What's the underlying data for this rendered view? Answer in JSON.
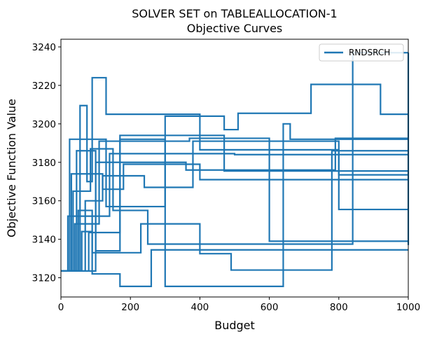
{
  "chart_data": {
    "type": "line",
    "title": "SOLVER SET on TABLEALLOCATION-1",
    "subtitle": "Objective Curves",
    "xlabel": "Budget",
    "ylabel": "Objective Function Value",
    "xlim": [
      0,
      1000
    ],
    "ylim": [
      3110,
      3244
    ],
    "xticks": [
      0,
      200,
      400,
      600,
      800,
      1000
    ],
    "yticks": [
      3120,
      3140,
      3160,
      3180,
      3200,
      3220,
      3240
    ],
    "grid": false,
    "legend_position": "top-right",
    "line_color": "#1f77b4",
    "series": [
      {
        "name": "RNDSRCH",
        "x": [
          0,
          25,
          25,
          130,
          130,
          300,
          300,
          470,
          470,
          510,
          510,
          720,
          720,
          920,
          920,
          1000
        ],
        "y": [
          3123.5,
          3123.5,
          3192,
          3192,
          3157,
          3157,
          3204,
          3204,
          3197,
          3197,
          3205.5,
          3205.5,
          3220.5,
          3220.5,
          3205,
          3205
        ]
      },
      {
        "x": [
          0,
          35,
          35,
          85,
          85,
          150,
          150,
          250,
          250,
          840,
          840,
          1000
        ],
        "y": [
          3123.5,
          3123.5,
          3165,
          3165,
          3187,
          3187,
          3155,
          3155,
          3137.5,
          3137.5,
          3237,
          3237
        ]
      },
      {
        "x": [
          0,
          45,
          45,
          100,
          100,
          170,
          170,
          470,
          470,
          1000
        ],
        "y": [
          3123.5,
          3123.5,
          3186,
          3186,
          3134,
          3134,
          3194,
          3194,
          3175.5,
          3175.5
        ]
      },
      {
        "x": [
          0,
          50,
          50,
          90,
          90,
          230,
          230,
          400,
          400,
          490,
          490,
          780,
          780,
          1000
        ],
        "y": [
          3123.5,
          3123.5,
          3155,
          3155,
          3133,
          3133,
          3148,
          3148,
          3132.5,
          3132.5,
          3124,
          3124,
          3186,
          3186
        ]
      },
      {
        "x": [
          0,
          55,
          55,
          75,
          75,
          90,
          90,
          130,
          130,
          400,
          400,
          800,
          800,
          1000
        ],
        "y": [
          3123.5,
          3123.5,
          3209.5,
          3209.5,
          3170,
          3170,
          3224,
          3224,
          3205,
          3205,
          3186.5,
          3186.5,
          3173.5,
          3173.5
        ]
      },
      {
        "x": [
          0,
          60,
          60,
          90,
          90,
          170,
          170,
          260,
          260,
          1000
        ],
        "y": [
          3123.5,
          3123.5,
          3144,
          3144,
          3122,
          3122,
          3115.5,
          3115.5,
          3134.5,
          3134.5
        ]
      },
      {
        "x": [
          0,
          70,
          70,
          120,
          120,
          240,
          240,
          380,
          380,
          800,
          800,
          1000
        ],
        "y": [
          3123.5,
          3123.5,
          3160,
          3160,
          3173,
          3173,
          3167,
          3167,
          3191,
          3191,
          3155.5,
          3155.5
        ]
      },
      {
        "x": [
          0,
          80,
          80,
          170,
          170,
          300,
          300,
          640,
          640,
          660,
          660,
          1000
        ],
        "y": [
          3123.5,
          3123.5,
          3143.5,
          3143.5,
          3192,
          3192,
          3115.5,
          3115.5,
          3200,
          3200,
          3192,
          3192
        ]
      },
      {
        "x": [
          0,
          100,
          100,
          360,
          360,
          790,
          790,
          1000
        ],
        "y": [
          3123.5,
          3123.5,
          3180,
          3180,
          3176,
          3176,
          3192.5,
          3192.5
        ]
      },
      {
        "x": [
          0,
          40,
          40,
          110,
          110,
          370,
          370,
          600,
          600,
          1000
        ],
        "y": [
          3123.5,
          3123.5,
          3148,
          3148,
          3191,
          3191,
          3192.5,
          3192.5,
          3139,
          3139
        ]
      },
      {
        "x": [
          0,
          30,
          30,
          120,
          120,
          180,
          180,
          400,
          400,
          1000
        ],
        "y": [
          3123.5,
          3123.5,
          3174,
          3174,
          3166,
          3166,
          3179,
          3179,
          3171,
          3171
        ]
      },
      {
        "x": [
          0,
          20,
          20,
          140,
          140,
          500,
          500,
          1000
        ],
        "y": [
          3123.5,
          3123.5,
          3152,
          3152,
          3184.5,
          3184.5,
          3184,
          3184
        ]
      },
      {
        "x": [
          1000,
          1000
        ],
        "y": [
          3137,
          3237
        ]
      }
    ]
  }
}
